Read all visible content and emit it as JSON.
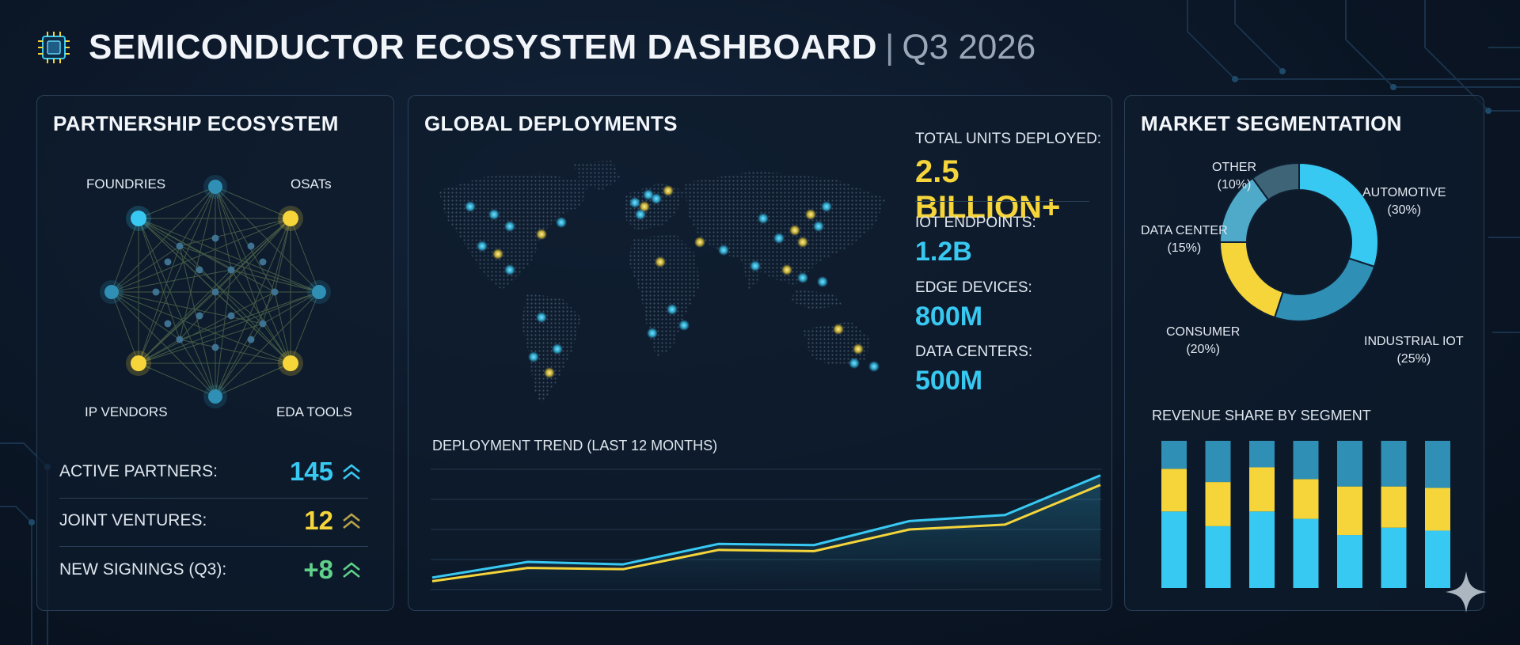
{
  "header": {
    "title": "SEMICONDUCTOR ECOSYSTEM DASHBOARD",
    "separator": "|",
    "period": "Q3 2026"
  },
  "colors": {
    "cyan": "#38c9f2",
    "yellow": "#f5d53a",
    "teal": "#2f8fb5",
    "slate": "#3e6478",
    "green": "#5fd18a",
    "panel_border": "#2a4058"
  },
  "partnerships": {
    "title": "PARTNERSHIP ECOSYSTEM",
    "nodes": {
      "foundries": "FOUNDRIES",
      "osats": "OSATs",
      "ip_vendors": "IP VENDORS",
      "eda_tools": "EDA TOOLS"
    },
    "stats": [
      {
        "label": "ACTIVE PARTNERS:",
        "value": "145",
        "color": "#38c9f2"
      },
      {
        "label": "JOINT VENTURES:",
        "value": "12",
        "color": "#f5d53a"
      },
      {
        "label": "NEW SIGNINGS (Q3):",
        "value": "+8",
        "color": "#5fd18a"
      }
    ]
  },
  "deployments": {
    "title": "GLOBAL DEPLOYMENTS",
    "kpis": [
      {
        "label": "TOTAL UNITS DEPLOYED:",
        "value": "2.5 BILLION+",
        "color": "#f5d53a"
      },
      {
        "label": "IOT ENDPOINTS:",
        "value": "1.2B",
        "color": "#38c9f2"
      },
      {
        "label": "EDGE DEVICES:",
        "value": "800M",
        "color": "#38c9f2"
      },
      {
        "label": "DATA CENTERS:",
        "value": "500M",
        "color": "#38c9f2"
      }
    ],
    "trend_title": "DEPLOYMENT TREND (LAST 12 MONTHS)"
  },
  "market": {
    "title": "MARKET SEGMENTATION",
    "segments": [
      {
        "name": "AUTOMOTIVE",
        "pct_label": "(30%)",
        "value": 30,
        "color": "#38c9f2"
      },
      {
        "name": "INDUSTRIAL IOT",
        "pct_label": "(25%)",
        "value": 25,
        "color": "#2f8fb5"
      },
      {
        "name": "CONSUMER",
        "pct_label": "(20%)",
        "value": 20,
        "color": "#f5d53a"
      },
      {
        "name": "DATA CENTER",
        "pct_label": "(15%)",
        "value": 15,
        "color": "#4fa9c9"
      },
      {
        "name": "OTHER",
        "pct_label": "(10%)",
        "value": 10,
        "color": "#3e6478"
      }
    ],
    "revenue_title": "REVENUE SHARE BY SEGMENT"
  },
  "chart_data": [
    {
      "type": "line",
      "title": "DEPLOYMENT TREND (LAST 12 MONTHS)",
      "x": [
        1,
        2,
        3,
        4,
        5,
        6,
        7,
        8
      ],
      "series": [
        {
          "values": [
            10,
            23,
            21,
            38,
            37,
            57,
            62,
            95
          ],
          "color": "#38c9f2"
        },
        {
          "values": [
            7,
            18,
            17,
            33,
            32,
            50,
            54,
            87
          ],
          "color": "#f5d53a"
        }
      ],
      "ylim": [
        0,
        100
      ],
      "grid": true
    },
    {
      "type": "bar",
      "title": "REVENUE SHARE BY SEGMENT",
      "stacked": true,
      "categories": [
        "1",
        "2",
        "3",
        "4",
        "5",
        "6",
        "7"
      ],
      "series": [
        {
          "values": [
            52,
            42,
            52,
            47,
            36,
            41,
            39
          ],
          "color": "#38c9f2"
        },
        {
          "values": [
            29,
            30,
            30,
            27,
            33,
            28,
            29
          ],
          "color": "#f5d53a"
        },
        {
          "values": [
            19,
            28,
            18,
            26,
            31,
            31,
            32
          ],
          "color": "#2f8fb5"
        }
      ],
      "ylim": [
        0,
        100
      ]
    },
    {
      "type": "pie",
      "title": "MARKET SEGMENTATION",
      "categories": [
        "AUTOMOTIVE",
        "INDUSTRIAL IOT",
        "CONSUMER",
        "DATA CENTER",
        "OTHER"
      ],
      "values": [
        30,
        25,
        20,
        15,
        10
      ],
      "donut": true
    }
  ]
}
